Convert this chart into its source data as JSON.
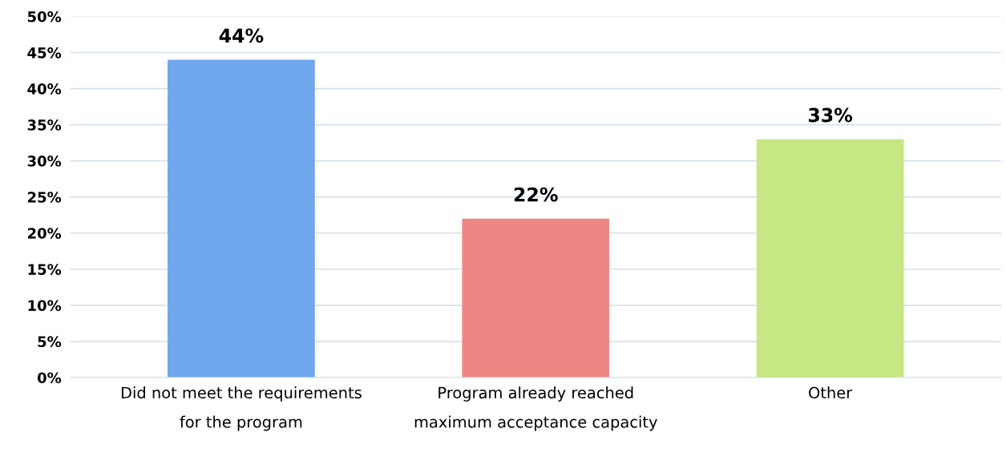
{
  "chart_data": {
    "type": "bar",
    "categories": [
      "Did not meet the requirements\nfor the program",
      "Program already reached\nmaximum acceptance capacity",
      "Other"
    ],
    "values": [
      44,
      22,
      33
    ],
    "colors": [
      "#6fa6ec",
      "#ee8784",
      "#c6e784"
    ],
    "value_labels": [
      "44%",
      "22%",
      "33%"
    ],
    "ylim": [
      0,
      50
    ],
    "yticks": [
      {
        "value": 0,
        "label": "0%"
      },
      {
        "value": 5,
        "label": "5%"
      },
      {
        "value": 10,
        "label": "10%"
      },
      {
        "value": 15,
        "label": "15%"
      },
      {
        "value": 20,
        "label": "20%"
      },
      {
        "value": 25,
        "label": "25%"
      },
      {
        "value": 30,
        "label": "30%"
      },
      {
        "value": 35,
        "label": "35%"
      },
      {
        "value": 40,
        "label": "40%"
      },
      {
        "value": 45,
        "label": "45%"
      },
      {
        "value": 50,
        "label": "50%"
      }
    ],
    "grid": "y"
  }
}
